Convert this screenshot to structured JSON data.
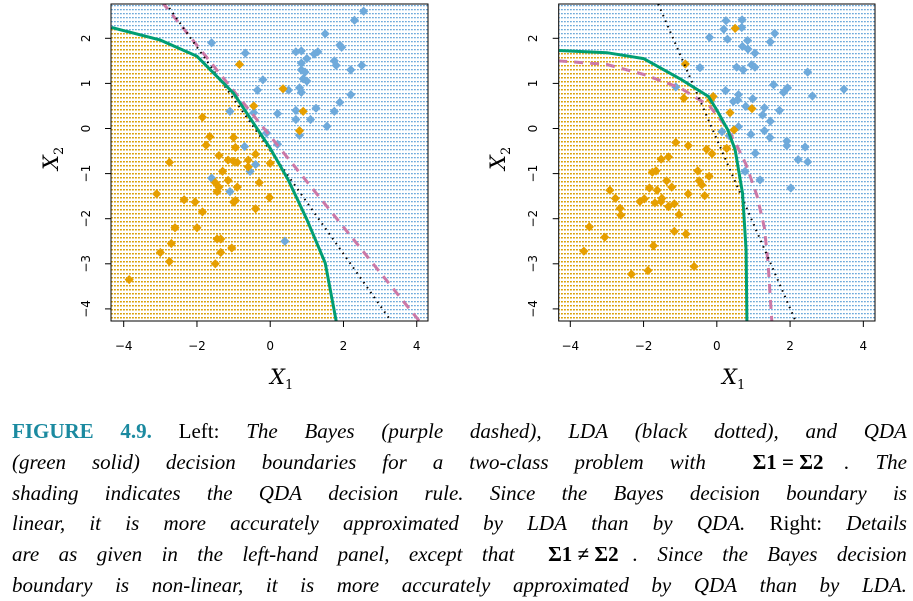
{
  "colors": {
    "orange": "#E69F00",
    "blue": "#6FAADB",
    "green": "#009E73",
    "purple": "#CC79A7",
    "lda": "#000000",
    "figure_label": "#1b8aa0"
  },
  "chart_data": [
    {
      "type": "scatter",
      "panel": "left",
      "xlabel": "X1",
      "ylabel": "X2",
      "xlim": [
        -4.33,
        4.33
      ],
      "ylim": [
        -4.27,
        2.76
      ],
      "xticks": [
        "-4",
        "-2",
        "0",
        "2",
        "4"
      ],
      "xtick_values": [
        -4,
        -2,
        0,
        2,
        4
      ],
      "yticks": [
        "-4",
        "-3",
        "-2",
        "-1",
        "0",
        "1",
        "2"
      ],
      "ytick_values": [
        -4,
        -3,
        -2,
        -1,
        0,
        1,
        2
      ],
      "series": [
        {
          "name": "class-blue",
          "color": "blue",
          "points": [
            [
              2.55,
              2.6
            ],
            [
              2.3,
              2.4
            ],
            [
              1.5,
              2.1
            ],
            [
              -1.6,
              1.9
            ],
            [
              -0.68,
              1.67
            ],
            [
              0.7,
              1.7
            ],
            [
              0.85,
              1.72
            ],
            [
              1.3,
              1.7
            ],
            [
              1.2,
              1.65
            ],
            [
              1.9,
              1.85
            ],
            [
              1.95,
              1.8
            ],
            [
              1.0,
              1.55
            ],
            [
              1.75,
              1.5
            ],
            [
              1.8,
              1.4
            ],
            [
              0.85,
              1.45
            ],
            [
              0.85,
              1.3
            ],
            [
              0.95,
              1.25
            ],
            [
              2.2,
              1.3
            ],
            [
              2.5,
              1.4
            ],
            [
              0.9,
              1.1
            ],
            [
              1.0,
              1.05
            ],
            [
              -0.2,
              1.08
            ],
            [
              -0.35,
              0.85
            ],
            [
              0.5,
              0.85
            ],
            [
              0.8,
              0.9
            ],
            [
              0.85,
              0.8
            ],
            [
              2.2,
              0.75
            ],
            [
              1.9,
              0.58
            ],
            [
              -1.1,
              0.38
            ],
            [
              -0.45,
              0.35
            ],
            [
              0.7,
              0.4
            ],
            [
              1.25,
              0.45
            ],
            [
              1.75,
              0.38
            ],
            [
              0.2,
              0.33
            ],
            [
              0.7,
              0.2
            ],
            [
              1.1,
              0.2
            ],
            [
              1.55,
              0.05
            ],
            [
              -0.1,
              -0.1
            ],
            [
              0.8,
              -0.15
            ],
            [
              0.2,
              -0.35
            ],
            [
              -0.7,
              -0.4
            ],
            [
              -0.4,
              -0.8
            ],
            [
              -0.55,
              -0.95
            ],
            [
              -1.6,
              -1.1
            ],
            [
              -1.1,
              -1.4
            ],
            [
              0.4,
              -2.5
            ]
          ]
        },
        {
          "name": "class-orange",
          "color": "orange",
          "points": [
            [
              -0.84,
              1.42
            ],
            [
              0.35,
              0.88
            ],
            [
              -0.45,
              0.5
            ],
            [
              0.9,
              0.38
            ],
            [
              -1.85,
              0.25
            ],
            [
              0.8,
              -0.05
            ],
            [
              -1.65,
              -0.18
            ],
            [
              -1.75,
              -0.37
            ],
            [
              -1.0,
              -0.2
            ],
            [
              -0.95,
              -0.42
            ],
            [
              -1.4,
              -0.6
            ],
            [
              -0.4,
              -0.57
            ],
            [
              -2.75,
              -0.75
            ],
            [
              -1.15,
              -0.7
            ],
            [
              -1.0,
              -0.73
            ],
            [
              -0.9,
              -0.75
            ],
            [
              -0.6,
              -0.7
            ],
            [
              -0.6,
              -0.85
            ],
            [
              0,
              -0.77
            ],
            [
              -1.3,
              -0.95
            ],
            [
              -1.15,
              -1.15
            ],
            [
              -0.3,
              -1.2
            ],
            [
              -1.5,
              -1.2
            ],
            [
              -1.45,
              -1.4
            ],
            [
              -1.4,
              -1.3
            ],
            [
              -0.9,
              -1.3
            ],
            [
              -3.1,
              -1.45
            ],
            [
              -2.35,
              -1.58
            ],
            [
              -2.05,
              -1.63
            ],
            [
              -1.0,
              -1.63
            ],
            [
              -0.95,
              -1.6
            ],
            [
              -0.4,
              -1.78
            ],
            [
              -0.02,
              -1.53
            ],
            [
              -1.85,
              -1.85
            ],
            [
              -2.6,
              -2.2
            ],
            [
              -2.0,
              -2.2
            ],
            [
              -2.7,
              -2.55
            ],
            [
              -1.45,
              -2.45
            ],
            [
              -1.35,
              -2.45
            ],
            [
              -1.05,
              -2.65
            ],
            [
              -3.0,
              -2.75
            ],
            [
              -1.35,
              -2.75
            ],
            [
              -2.75,
              -2.95
            ],
            [
              -1.5,
              -3.0
            ],
            [
              -3.85,
              -3.35
            ]
          ]
        }
      ],
      "boundaries": {
        "bayes": {
          "style": "purple dashed",
          "points": [
            [
              -2.95,
              2.8
            ],
            [
              4.1,
              -4.3
            ]
          ]
        },
        "lda": {
          "style": "black dotted",
          "points": [
            [
              -2.85,
              2.78
            ],
            [
              3.3,
              -4.27
            ]
          ]
        },
        "qda": {
          "style": "green solid",
          "points": [
            [
              -4.33,
              2.24
            ],
            [
              -3,
              1.96
            ],
            [
              -2,
              1.6
            ],
            [
              -1,
              0.78
            ],
            [
              0,
              -0.44
            ],
            [
              0.5,
              -1.15
            ],
            [
              1,
              -2.02
            ],
            [
              1.5,
              -2.98
            ],
            [
              1.8,
              -4.27
            ]
          ]
        }
      }
    },
    {
      "type": "scatter",
      "panel": "right",
      "xlabel": "X1",
      "ylabel": "X2",
      "xlim": [
        -4.33,
        4.33
      ],
      "ylim": [
        -4.27,
        2.76
      ],
      "xticks": [
        "-4",
        "-2",
        "0",
        "2",
        "4"
      ],
      "xtick_values": [
        -4,
        -2,
        0,
        2,
        4
      ],
      "yticks": [
        "-4",
        "-3",
        "-2",
        "-1",
        "0",
        "1",
        "2"
      ],
      "ytick_values": [
        -4,
        -3,
        -2,
        -1,
        0,
        1,
        2
      ],
      "series": [
        {
          "name": "class-blue",
          "color": "blue",
          "points": [
            [
              0.25,
              2.39
            ],
            [
              0.69,
              2.41
            ],
            [
              0.19,
              2.2
            ],
            [
              0.68,
              2.24
            ],
            [
              1.58,
              2.11
            ],
            [
              -0.2,
              2.02
            ],
            [
              0.29,
              1.98
            ],
            [
              0.84,
              1.95
            ],
            [
              1.46,
              1.92
            ],
            [
              0.7,
              1.82
            ],
            [
              0.85,
              1.76
            ],
            [
              1.04,
              1.67
            ],
            [
              -0.46,
              1.35
            ],
            [
              0.54,
              1.36
            ],
            [
              0.72,
              1.3
            ],
            [
              0.95,
              1.41
            ],
            [
              1.04,
              1.36
            ],
            [
              2.48,
              1.25
            ],
            [
              1.55,
              0.97
            ],
            [
              -1.12,
              0.92
            ],
            [
              0.24,
              0.84
            ],
            [
              1.93,
              0.9
            ],
            [
              1.82,
              0.8
            ],
            [
              2.61,
              0.72
            ],
            [
              3.47,
              0.87
            ],
            [
              0.59,
              0.75
            ],
            [
              0.45,
              0.6
            ],
            [
              0.57,
              0.63
            ],
            [
              0.98,
              0.66
            ],
            [
              0.79,
              0.49
            ],
            [
              1.3,
              0.46
            ],
            [
              1.71,
              0.4
            ],
            [
              1.25,
              0.3
            ],
            [
              1.46,
              0.16
            ],
            [
              0.59,
              0.04
            ],
            [
              0.14,
              -0.07
            ],
            [
              0.34,
              -0.16
            ],
            [
              0.93,
              -0.13
            ],
            [
              1.3,
              -0.05
            ],
            [
              1.45,
              -0.2
            ],
            [
              1.91,
              -0.28
            ],
            [
              1.91,
              -0.38
            ],
            [
              2.41,
              -0.41
            ],
            [
              1.05,
              -0.55
            ],
            [
              2.22,
              -0.69
            ],
            [
              2.48,
              -0.74
            ],
            [
              0.77,
              -0.95
            ],
            [
              1.18,
              -1.14
            ],
            [
              2.02,
              -1.32
            ]
          ]
        },
        {
          "name": "class-orange",
          "color": "orange",
          "points": [
            [
              0.5,
              2.22
            ],
            [
              -0.86,
              1.43
            ],
            [
              -0.1,
              0.71
            ],
            [
              -0.17,
              0.63
            ],
            [
              -0.9,
              0.67
            ],
            [
              0.96,
              0.44
            ],
            [
              0.36,
              0.35
            ],
            [
              0.47,
              -0.03
            ],
            [
              -1.12,
              -0.31
            ],
            [
              -0.78,
              -0.38
            ],
            [
              -0.28,
              -0.46
            ],
            [
              -0.13,
              -0.56
            ],
            [
              0.27,
              -0.44
            ],
            [
              -1.52,
              -0.68
            ],
            [
              -1.32,
              -0.63
            ],
            [
              -0.52,
              -0.94
            ],
            [
              -0.21,
              -1.06
            ],
            [
              -1.76,
              -0.97
            ],
            [
              -1.66,
              -0.94
            ],
            [
              -1.37,
              -1.16
            ],
            [
              -0.48,
              -1.16
            ],
            [
              -0.41,
              -1.25
            ],
            [
              -1.23,
              -1.3
            ],
            [
              -2.92,
              -1.37
            ],
            [
              -1.84,
              -1.32
            ],
            [
              -1.63,
              -1.37
            ],
            [
              -2.77,
              -1.55
            ],
            [
              -1.98,
              -1.56
            ],
            [
              -2.1,
              -1.62
            ],
            [
              -1.5,
              -1.55
            ],
            [
              -1.52,
              -1.62
            ],
            [
              -1.69,
              -1.65
            ],
            [
              -1.32,
              -1.73
            ],
            [
              -1.16,
              -1.67
            ],
            [
              -0.78,
              -1.45
            ],
            [
              -0.33,
              -1.49
            ],
            [
              -2.64,
              -1.77
            ],
            [
              -2.62,
              -1.92
            ],
            [
              -1.03,
              -1.91
            ],
            [
              -3.48,
              -2.18
            ],
            [
              -3.06,
              -2.41
            ],
            [
              -1.16,
              -2.28
            ],
            [
              -0.84,
              -2.34
            ],
            [
              -1.73,
              -2.6
            ],
            [
              -3.63,
              -2.72
            ],
            [
              -0.62,
              -3.06
            ],
            [
              -1.88,
              -3.15
            ],
            [
              -2.33,
              -3.23
            ]
          ]
        }
      ],
      "boundaries": {
        "bayes": {
          "style": "purple dashed",
          "points": [
            [
              -4.33,
              1.5
            ],
            [
              -3,
              1.42
            ],
            [
              -2,
              1.2
            ],
            [
              -1,
              0.9
            ],
            [
              -0.2,
              0.5
            ],
            [
              0.2,
              0.1
            ],
            [
              0.5,
              -0.3
            ],
            [
              0.8,
              -0.8
            ],
            [
              1.1,
              -1.5
            ],
            [
              1.3,
              -2.2
            ],
            [
              1.4,
              -3
            ],
            [
              1.5,
              -4.27
            ]
          ]
        },
        "lda": {
          "style": "black dotted",
          "points": [
            [
              -1.6,
              2.76
            ],
            [
              2.15,
              -4.27
            ]
          ]
        },
        "qda": {
          "style": "green solid",
          "points": [
            [
              -4.33,
              1.73
            ],
            [
              -3,
              1.68
            ],
            [
              -2,
              1.55
            ],
            [
              -1,
              1.1
            ],
            [
              -0.23,
              0.71
            ],
            [
              0,
              0.41
            ],
            [
              0.3,
              -0.03
            ],
            [
              0.5,
              -0.47
            ],
            [
              0.7,
              -1.43
            ],
            [
              0.8,
              -2.69
            ],
            [
              0.82,
              -4.27
            ]
          ]
        }
      }
    }
  ],
  "caption": {
    "lines": [
      [
        {
          "s": "b",
          "t": "FIGURE 4.9."
        },
        {
          "s": "r",
          "t": " Left:"
        },
        {
          "s": "i",
          "t": " The Bayes (purple dashed), LDA (black dotted), and QDA"
        }
      ],
      [
        {
          "s": "i",
          "t": "(green solid) decision boundaries for a two-class problem with "
        },
        {
          "s": "m",
          "t": "Σ1 = Σ2"
        },
        {
          "s": "i",
          "t": ". The"
        }
      ],
      [
        {
          "s": "i",
          "t": "shading indicates the QDA decision rule. Since the Bayes decision boundary is"
        }
      ],
      [
        {
          "s": "i",
          "t": "linear, it is more accurately approximated by LDA than by QDA."
        },
        {
          "s": "r",
          "t": " Right:"
        },
        {
          "s": "i",
          "t": " Details"
        }
      ],
      [
        {
          "s": "i",
          "t": "are as given in the left-hand panel, except that "
        },
        {
          "s": "m",
          "t": "Σ1 ≠ Σ2"
        },
        {
          "s": "i",
          "t": ". Since the Bayes decision"
        }
      ],
      [
        {
          "s": "i",
          "t": "boundary is non-linear, it is more accurately approximated by QDA than by LDA."
        }
      ]
    ]
  }
}
